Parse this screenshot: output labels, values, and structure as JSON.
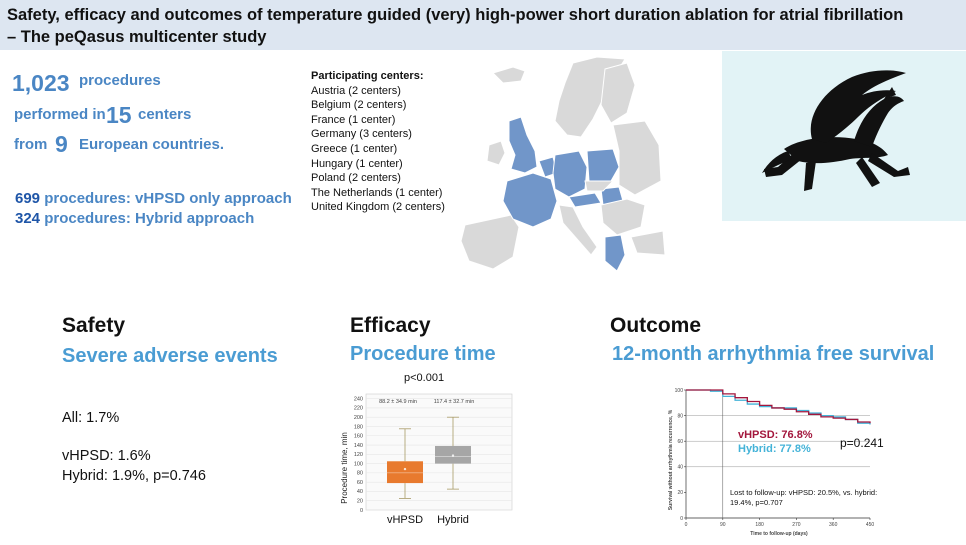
{
  "title": {
    "line1": "Safety, efficacy and outcomes of temperature guided (very) high-power short duration ablation for atrial fibrillation",
    "line2": "– The peQasus multicenter study"
  },
  "stats": {
    "procedures_num": "1,023",
    "procedures_label": "procedures",
    "performed_in": "performed in",
    "centers_num": "15",
    "centers_label": "centers",
    "from": "from",
    "countries_num": "9",
    "countries_label": "European countries."
  },
  "approaches": [
    {
      "num": "699",
      "label": "procedures: vHPSD only approach"
    },
    {
      "num": "324",
      "label": "procedures: Hybrid approach"
    }
  ],
  "centers": {
    "heading": "Participating centers:",
    "items": [
      "Austria (2 centers)",
      "Belgium (2 centers)",
      "France (1 center)",
      "Germany (3 centers)",
      "Greece (1 center)",
      "Hungary (1 center)",
      "Poland (2 centers)",
      "The Netherlands (1 center)",
      "United Kingdom (2 centers)"
    ]
  },
  "colors": {
    "title_bg": "#dde6f1",
    "accent": "#4a86c4",
    "section_sub": "#4a9cd3",
    "map_participating": "#7196c9",
    "map_other": "#d9d9d9",
    "vhpsd": "#e87a2e",
    "hybrid": "#a6a6a6",
    "km_vhpsd": "#a3163c",
    "km_hybrid": "#44b3d8"
  },
  "safety": {
    "heading": "Safety",
    "subheading": "Severe adverse events",
    "all": "All: 1.7%",
    "vhpsd": "vHPSD: 1.6%",
    "hybrid": "Hybrid: 1.9%, p=0.746"
  },
  "efficacy": {
    "heading": "Efficacy",
    "subheading": "Procedure time",
    "p_value": "p<0.001",
    "vhpsd_label": "vHPSD",
    "hybrid_label": "Hybrid",
    "vhpsd_stat": "88.2 ± 34.9 min",
    "hybrid_stat": "117.4 ± 32.7 min",
    "y_axis_label": "Procedure time, min"
  },
  "outcome": {
    "heading": "Outcome",
    "subheading": "12-month arrhythmia free survival",
    "vhpsd": "vHPSD: 76.8%",
    "hybrid": "Hybrid: 77.8%",
    "p_value": "p=0.241",
    "lost_line1": "Lost to follow-up: vHPSD: 20.5%, vs. hybrid:",
    "lost_line2": "19.4%, p=0.707",
    "x_axis_label": "Time to follow-up (days)",
    "y_axis_label": "Survival without arrhythmia recurrence, %"
  },
  "chart_data": [
    {
      "type": "box",
      "title": "Procedure time",
      "ylabel": "Procedure time, min",
      "ylim": [
        0,
        250
      ],
      "yticks": [
        0,
        20,
        40,
        60,
        80,
        100,
        120,
        140,
        160,
        180,
        200,
        220,
        240
      ],
      "categories": [
        "vHPSD",
        "Hybrid"
      ],
      "series": [
        {
          "name": "vHPSD",
          "whisker_low": 25,
          "q1": 58,
          "median": 80,
          "q3": 105,
          "whisker_high": 175,
          "mean": 88.2
        },
        {
          "name": "Hybrid",
          "whisker_low": 45,
          "q1": 100,
          "median": 115,
          "q3": 138,
          "whisker_high": 200,
          "mean": 117.4
        }
      ],
      "annotation": "p<0.001"
    },
    {
      "type": "line",
      "title": "12-month arrhythmia free survival",
      "xlabel": "Time to follow-up (days)",
      "ylabel": "Survival without arrhythmia recurrence, %",
      "xlim": [
        0,
        450
      ],
      "ylim": [
        0,
        100
      ],
      "xticks": [
        0,
        90,
        180,
        270,
        360,
        450
      ],
      "yticks": [
        0,
        20,
        40,
        60,
        80,
        100
      ],
      "x": [
        0,
        30,
        60,
        90,
        120,
        150,
        180,
        210,
        240,
        270,
        300,
        330,
        360,
        390,
        420,
        450
      ],
      "series": [
        {
          "name": "vHPSD",
          "values": [
            100,
            100,
            100,
            97,
            94,
            91,
            88,
            86,
            85,
            83,
            81,
            79,
            78,
            77,
            75,
            74
          ]
        },
        {
          "name": "Hybrid",
          "values": [
            100,
            100,
            99,
            95,
            92,
            89,
            87,
            86,
            86,
            84,
            82,
            80,
            79,
            77,
            74,
            73
          ]
        }
      ]
    }
  ]
}
